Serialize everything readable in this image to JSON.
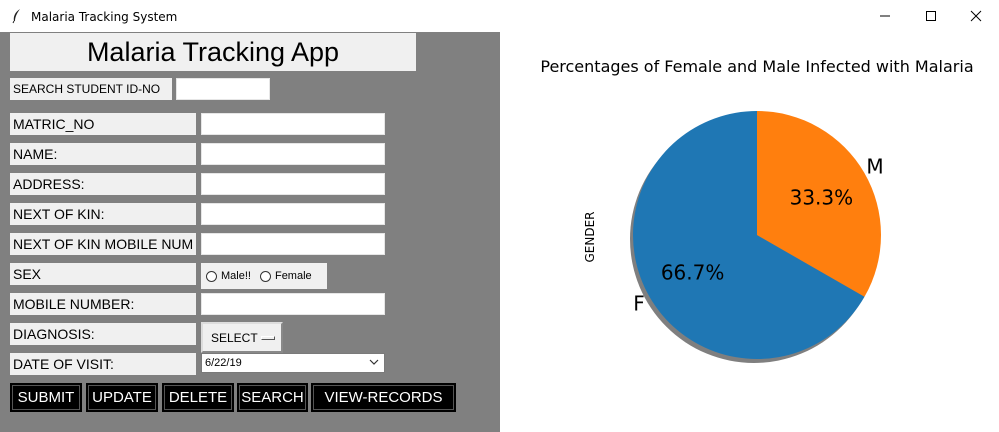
{
  "window": {
    "title": "Malaria Tracking System"
  },
  "form": {
    "heading": "Malaria Tracking App",
    "search_label": "SEARCH STUDENT ID-NO",
    "search_value": "",
    "fields": {
      "matric_label": "MATRIC_NO",
      "name_label": "NAME:",
      "address_label": "ADDRESS:",
      "kin_label": "NEXT OF KIN:",
      "kin_mobile_label": "NEXT OF KIN MOBILE NUM",
      "sex_label": "SEX",
      "mobile_label": "MOBILE NUMBER:",
      "diagnosis_label": "DIAGNOSIS:",
      "date_label": "DATE OF VISIT:"
    },
    "sex_options": {
      "male": "Male!!",
      "female": "Female"
    },
    "diagnosis_selected": "SELECT",
    "date_value": "6/22/19"
  },
  "buttons": {
    "submit": "SUBMIT",
    "update": "UPDATE",
    "delete": "DELETE",
    "search": "SEARCH",
    "view_records": "VIEW-RECORDS"
  },
  "chart_data": {
    "type": "pie",
    "title": "Percentages of Female and Male Infected with Malaria",
    "ylabel": "GENDER",
    "categories": [
      "F",
      "M"
    ],
    "values": [
      66.7,
      33.3
    ],
    "labels": [
      "66.7%",
      "33.3%"
    ],
    "colors": [
      "#1f77b4",
      "#ff7f0e"
    ],
    "shadow": true,
    "start_angle": 90
  }
}
